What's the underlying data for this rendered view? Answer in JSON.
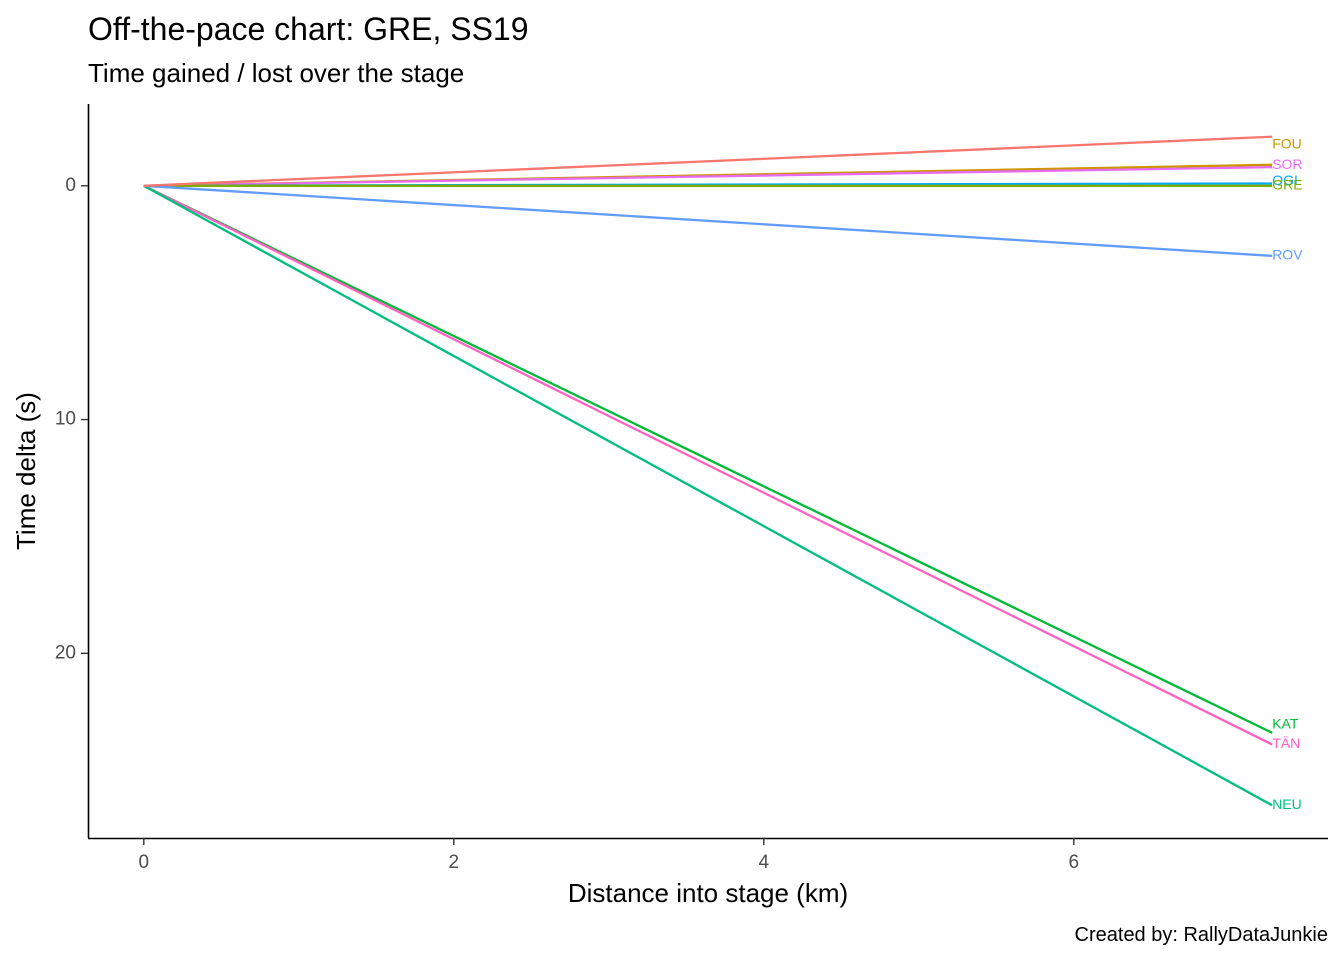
{
  "chart_data": {
    "type": "line",
    "title": "Off-the-pace chart: GRE, SS19",
    "subtitle": "Time gained / lost over the stage",
    "xlabel": "Distance into stage (km)",
    "ylabel": "Time delta (s)",
    "caption": "Created by: RallyDataJunkie",
    "xlim": [
      -0.36,
      7.64
    ],
    "ylim": [
      -3.5,
      27.9
    ],
    "y_reversed": true,
    "grid": false,
    "legend": "none (end-of-line labels)",
    "x_ticks": [
      0,
      2,
      4,
      6
    ],
    "y_ticks": [
      0,
      10,
      20
    ],
    "series": [
      {
        "name": "FOU",
        "color": "#CD9600",
        "x": [
          0,
          7.28
        ],
        "y": [
          0,
          -0.9
        ]
      },
      {
        "name": "SOR",
        "color": "#E76BF3",
        "x": [
          0,
          7.28
        ],
        "y": [
          0,
          -0.8
        ]
      },
      {
        "name": "OGI",
        "color": "#00A9FF",
        "x": [
          0,
          7.28
        ],
        "y": [
          0,
          -0.1
        ]
      },
      {
        "name": "GRE",
        "color": "#7CAE00",
        "x": [
          0,
          7.28
        ],
        "y": [
          0,
          0
        ]
      },
      {
        "name": "ROV",
        "color": "#619CFF",
        "x": [
          0,
          7.28
        ],
        "y": [
          0,
          3.0
        ]
      },
      {
        "name": "KAT",
        "color": "#00BA38",
        "x": [
          0,
          7.28
        ],
        "y": [
          0,
          23.4
        ]
      },
      {
        "name": "TÄN",
        "color": "#FF61C3",
        "x": [
          0,
          7.28
        ],
        "y": [
          0,
          23.9
        ]
      },
      {
        "name": "NEU",
        "color": "#00BF7D",
        "x": [
          0,
          7.28
        ],
        "y": [
          0,
          26.5
        ]
      },
      {
        "name": "",
        "color": "#F8766D",
        "x": [
          0,
          7.28
        ],
        "y": [
          0,
          -2.1
        ]
      }
    ]
  }
}
